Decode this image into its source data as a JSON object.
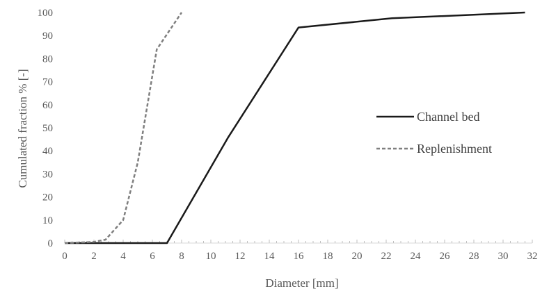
{
  "chart_data": {
    "type": "line",
    "xlabel": "Diameter [mm]",
    "ylabel": "Cumulated fraction  % [-]",
    "xlim": [
      0,
      32
    ],
    "ylim": [
      0,
      100
    ],
    "x_ticks": [
      "0",
      "2",
      "4",
      "6",
      "8",
      "10",
      "12",
      "14",
      "16",
      "18",
      "20",
      "22",
      "24",
      "26",
      "28",
      "30",
      "32"
    ],
    "y_ticks": [
      "0",
      "10",
      "20",
      "30",
      "40",
      "50",
      "60",
      "70",
      "80",
      "90",
      "100"
    ],
    "grid": false,
    "legend_position": "right",
    "series": [
      {
        "name": "Channel bed",
        "style": "solid",
        "color": "#1a1a1a",
        "points": [
          [
            0,
            0
          ],
          [
            7,
            0
          ],
          [
            11.2,
            46
          ],
          [
            16,
            93.5
          ],
          [
            22.4,
            97.5
          ],
          [
            31.5,
            100
          ]
        ]
      },
      {
        "name": "Replenishment",
        "style": "dashed",
        "color": "#7f7f7f",
        "points": [
          [
            0,
            0
          ],
          [
            2,
            0.5
          ],
          [
            2.8,
            1.5
          ],
          [
            4,
            10
          ],
          [
            5,
            35
          ],
          [
            6.3,
            84
          ],
          [
            8,
            100
          ]
        ]
      }
    ]
  }
}
